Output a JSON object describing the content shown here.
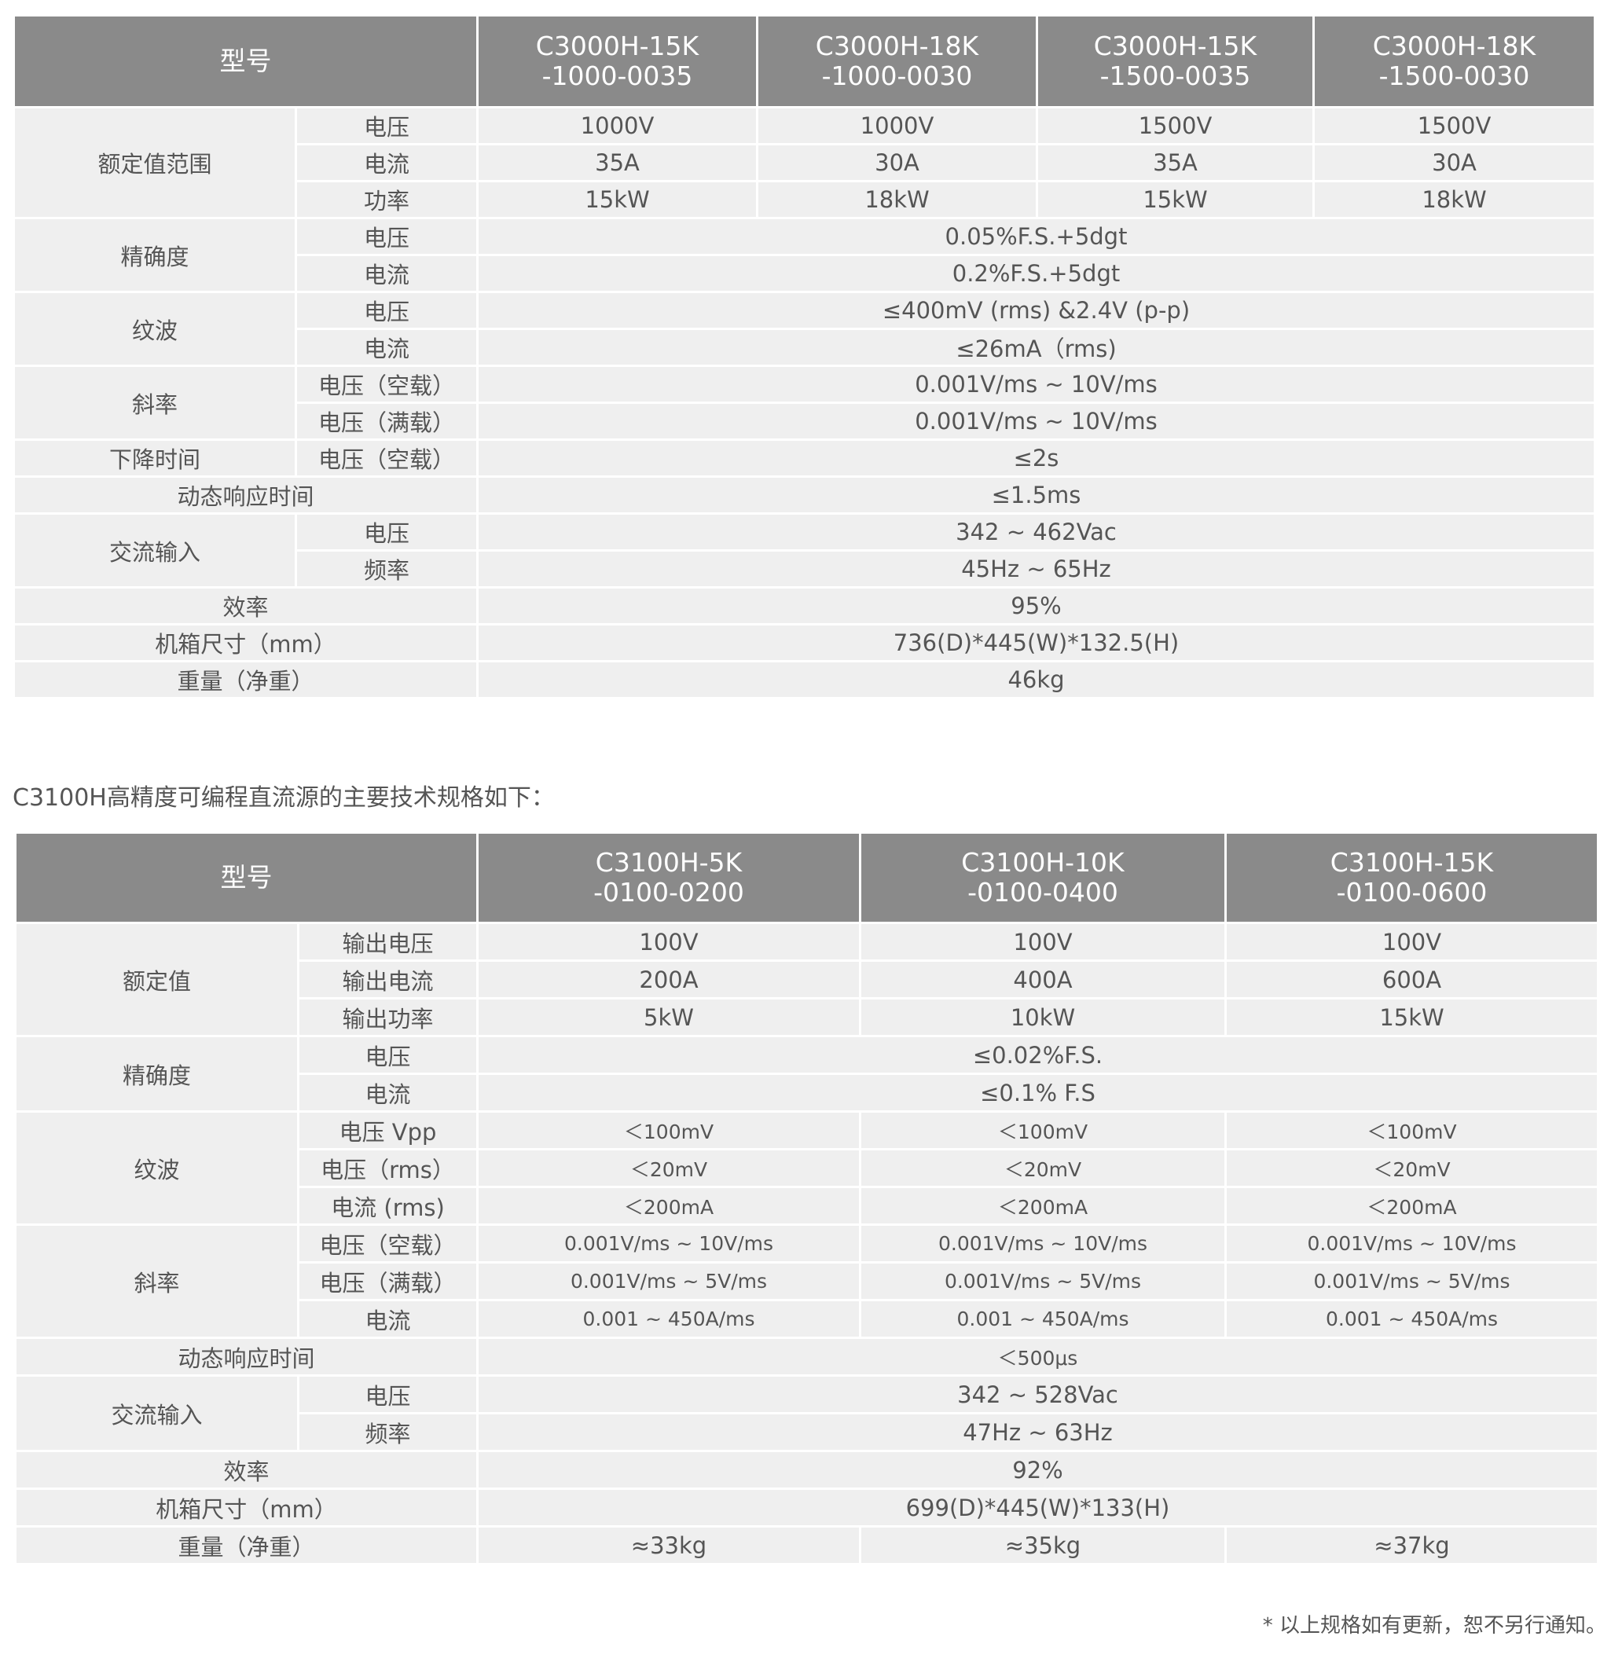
{
  "table1": {
    "header_label": "型号",
    "models": [
      "C3000H-15K\n-1000-0035",
      "C3000H-18K\n-1000-0030",
      "C3000H-15K\n-1500-0035",
      "C3000H-18K\n-1500-0030"
    ],
    "groups": [
      {
        "label": "额定值范围",
        "items": [
          {
            "sub": "电压",
            "values": [
              "1000V",
              "1000V",
              "1500V",
              "1500V"
            ]
          },
          {
            "sub": "电流",
            "values": [
              "35A",
              "30A",
              "35A",
              "30A"
            ]
          },
          {
            "sub": "功率",
            "values": [
              "15kW",
              "18kW",
              "15kW",
              "18kW"
            ]
          }
        ]
      },
      {
        "label": "精确度",
        "items": [
          {
            "sub": "电压",
            "values": [
              "0.05%F.S.+5dgt"
            ]
          },
          {
            "sub": "电流",
            "values": [
              "0.2%F.S.+5dgt"
            ]
          }
        ]
      },
      {
        "label": "纹波",
        "items": [
          {
            "sub": "电压",
            "values": [
              "≤400mV (rms) &2.4V (p-p)"
            ]
          },
          {
            "sub": "电流",
            "values": [
              "≤26mA（rms)"
            ]
          }
        ]
      },
      {
        "label": "斜率",
        "items": [
          {
            "sub": "电压（空载）",
            "values": [
              "0.001V/ms ~ 10V/ms"
            ]
          },
          {
            "sub": "电压（满载）",
            "values": [
              "0.001V/ms ~ 10V/ms"
            ]
          }
        ]
      },
      {
        "label": "下降时间",
        "items": [
          {
            "sub": "电压（空载）",
            "values": [
              "≤2s"
            ]
          }
        ]
      },
      {
        "label": "动态响应时间",
        "items": [
          {
            "sub": null,
            "values": [
              "≤1.5ms"
            ]
          }
        ]
      },
      {
        "label": "交流输入",
        "items": [
          {
            "sub": "电压",
            "values": [
              "342 ~ 462Vac"
            ]
          },
          {
            "sub": "频率",
            "values": [
              "45Hz ~ 65Hz"
            ]
          }
        ]
      },
      {
        "label": "效率",
        "items": [
          {
            "sub": null,
            "values": [
              "95%"
            ]
          }
        ]
      },
      {
        "label": "机箱尺寸（mm）",
        "items": [
          {
            "sub": null,
            "values": [
              "736(D)*445(W)*132.5(H)"
            ]
          }
        ]
      },
      {
        "label": "重量（净重）",
        "items": [
          {
            "sub": null,
            "values": [
              "46kg"
            ]
          }
        ]
      }
    ]
  },
  "intro_text": "C3100H高精度可编程直流源的主要技术规格如下：",
  "table2": {
    "header_label": "型号",
    "models": [
      "C3100H-5K\n-0100-0200",
      "C3100H-10K\n-0100-0400",
      "C3100H-15K\n-0100-0600"
    ],
    "groups": [
      {
        "label": "额定值",
        "items": [
          {
            "sub": "输出电压",
            "values": [
              "100V",
              "100V",
              "100V"
            ]
          },
          {
            "sub": "输出电流",
            "values": [
              "200A",
              "400A",
              "600A"
            ]
          },
          {
            "sub": "输出功率",
            "values": [
              "5kW",
              "10kW",
              "15kW"
            ]
          }
        ]
      },
      {
        "label": "精确度",
        "items": [
          {
            "sub": "电压",
            "values": [
              "≤0.02%F.S."
            ]
          },
          {
            "sub": "电流",
            "values": [
              "≤0.1% F.S"
            ]
          }
        ]
      },
      {
        "label": "纹波",
        "small": true,
        "items": [
          {
            "sub": "电压 Vpp",
            "values": [
              "＜100mV",
              "＜100mV",
              "＜100mV"
            ]
          },
          {
            "sub": "电压（rms）",
            "values": [
              "＜20mV",
              "＜20mV",
              "＜20mV"
            ]
          },
          {
            "sub": "电流 (rms)",
            "values": [
              "＜200mA",
              "＜200mA",
              "＜200mA"
            ]
          }
        ]
      },
      {
        "label": "斜率",
        "small": true,
        "items": [
          {
            "sub": "电压（空载）",
            "values": [
              "0.001V/ms ~ 10V/ms",
              "0.001V/ms ~ 10V/ms",
              "0.001V/ms ~ 10V/ms"
            ]
          },
          {
            "sub": "电压（满载）",
            "values": [
              "0.001V/ms ~ 5V/ms",
              "0.001V/ms ~ 5V/ms",
              "0.001V/ms ~ 5V/ms"
            ]
          },
          {
            "sub": "电流",
            "values": [
              "0.001 ~ 450A/ms",
              "0.001 ~ 450A/ms",
              "0.001 ~ 450A/ms"
            ]
          }
        ]
      },
      {
        "label": "动态响应时间",
        "small": true,
        "items": [
          {
            "sub": null,
            "values": [
              "＜500μs"
            ]
          }
        ]
      },
      {
        "label": "交流输入",
        "items": [
          {
            "sub": "电压",
            "values": [
              "342 ~ 528Vac"
            ]
          },
          {
            "sub": "频率",
            "values": [
              "47Hz ~ 63Hz"
            ]
          }
        ]
      },
      {
        "label": "效率",
        "items": [
          {
            "sub": null,
            "values": [
              "92%"
            ]
          }
        ]
      },
      {
        "label": "机箱尺寸（mm）",
        "items": [
          {
            "sub": null,
            "values": [
              "699(D)*445(W)*133(H)"
            ]
          }
        ]
      },
      {
        "label": "重量（净重）",
        "items": [
          {
            "sub": null,
            "values": [
              "≈33kg",
              "≈35kg",
              "≈37kg"
            ]
          }
        ]
      }
    ]
  },
  "footnote": "* 以上规格如有更新，恕不另行通知。"
}
